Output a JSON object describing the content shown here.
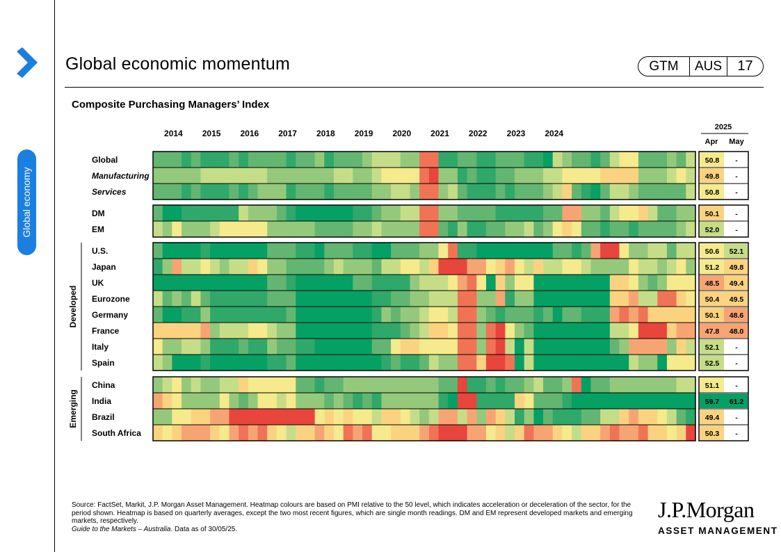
{
  "header": {
    "title": "Global economic momentum",
    "badge": {
      "left": "GTM",
      "mid": "AUS",
      "right": "17"
    },
    "side_tab": "Global economy"
  },
  "footer": {
    "source": "Source: FactSet, Markit, J.P. Morgan Asset Management. Heatmap colours are based on PMI relative to the 50 level, which indicates acceleration or deceleration of the sector, for the period shown. Heatmap is based on quarterly averages, except the two most recent figures, which are single month readings. DM and EM represent developed markets and emerging markets, respectively.",
    "guide": "Guide to the Markets – Australia",
    "asof": ". Data as of 30/05/25.",
    "logo_main": "J.P.Morgan",
    "logo_sub": "ASSET MANAGEMENT"
  },
  "colors": {
    "scale": [
      "#e8453c",
      "#f07356",
      "#f7a473",
      "#fbd380",
      "#f5ea8c",
      "#c6dd88",
      "#94c97c",
      "#62b671",
      "#2fa86a",
      "#05a064"
    ],
    "side_pill": "#1a7fe0"
  },
  "chart_data": {
    "type": "heatmap",
    "title": "Composite Purchasing Managers’ Index",
    "years": [
      "2014",
      "2015",
      "2016",
      "2017",
      "2018",
      "2019",
      "2020",
      "2021",
      "2022",
      "2023",
      "2024"
    ],
    "recent_year": "2025",
    "recent_months": [
      "Apr",
      "May"
    ],
    "color_scale_note": "colour bucket 0 (red, strong contraction) to 9 (dark green, strong expansion)",
    "groups": [
      {
        "label": "",
        "rows": [
          {
            "name": "Global",
            "italic": false,
            "q": "777878887877778776877765556611887788777889567787544777675",
            "apr": "50.8",
            "may": "-"
          },
          {
            "name": "Manufacturing",
            "italic": true,
            "q": "666665555555666666655665444410668788776665544443333666545",
            "apr": "49.8",
            "may": "-"
          },
          {
            "name": "Services",
            "italic": true,
            "q": "777878887876668777877776655611657888787776537897556777775",
            "apr": "50.8",
            "may": "-"
          }
        ]
      },
      {
        "label": "",
        "rows": [
          {
            "name": "DM",
            "italic": false,
            "q": "799888888566678999999887665511667777888887722667544357766",
            "apr": "50.1",
            "may": "-"
          },
          {
            "name": "EM",
            "italic": false,
            "q": "564666544444666667777665666611786887766576434778778777765",
            "apr": "52.0",
            "may": "-"
          }
        ]
      },
      {
        "label": "Developed",
        "rows": [
          {
            "name": "U.S.",
            "italic": false,
            "q": "799998999999777889777889977766418899999999778720046655755",
            "apr": "50.6",
            "may": "52.1"
          },
          {
            "name": "Japan",
            "italic": false,
            "q": "862554565534667777656667554453000224324535544566664556546",
            "apr": "51.2",
            "may": "49.8"
          },
          {
            "name": "UK",
            "italic": false,
            "q": "999999999999778999999778888655542149364499999999334676444",
            "apr": "48.5",
            "may": "49.4"
          },
          {
            "name": "Eurozone",
            "italic": false,
            "q": "576757888888777999999998877665551166286699999999332551134",
            "apr": "50.4",
            "may": "49.5"
          },
          {
            "name": "Germany",
            "italic": false,
            "q": "799886888888887999999998676654451167877787977888212133333",
            "apr": "50.1",
            "may": "48.6"
          },
          {
            "name": "France",
            "italic": false,
            "q": "333332655544566999999998887653341161046799999999554000322",
            "apr": "47.8",
            "max": "",
            "may": "48.0"
          },
          {
            "name": "Italy",
            "italic": false,
            "q": "466556888788677889999997743344441161059599999999762222635",
            "apr": "52.1",
            "may": "-"
          },
          {
            "name": "Spain",
            "italic": false,
            "q": "569998999999887999999999878875661130019599999999995669444",
            "apr": "52.5",
            "may": "-"
          }
        ]
      },
      {
        "label": "Emerging",
        "rows": [
          {
            "name": "China",
            "italic": false,
            "q": "654656655344444778776666666666770887877657761977666666655",
            "apr": "51.1",
            "may": "-"
          },
          {
            "name": "India",
            "italic": false,
            "q": "234666646764454666767878666666890088883477789999999999999",
            "apr": "59.7",
            "may": "61.2"
          },
          {
            "name": "Brazil",
            "italic": false,
            "q": "664433220000000004343445334565225262358697888775532334578",
            "apr": "49.4",
            "may": "-"
          },
          {
            "name": "South Africa",
            "italic": false,
            "q": "343222342121345332341214433321000224353122345332122133430",
            "apr": "50.3",
            "may": "-"
          }
        ]
      }
    ]
  }
}
